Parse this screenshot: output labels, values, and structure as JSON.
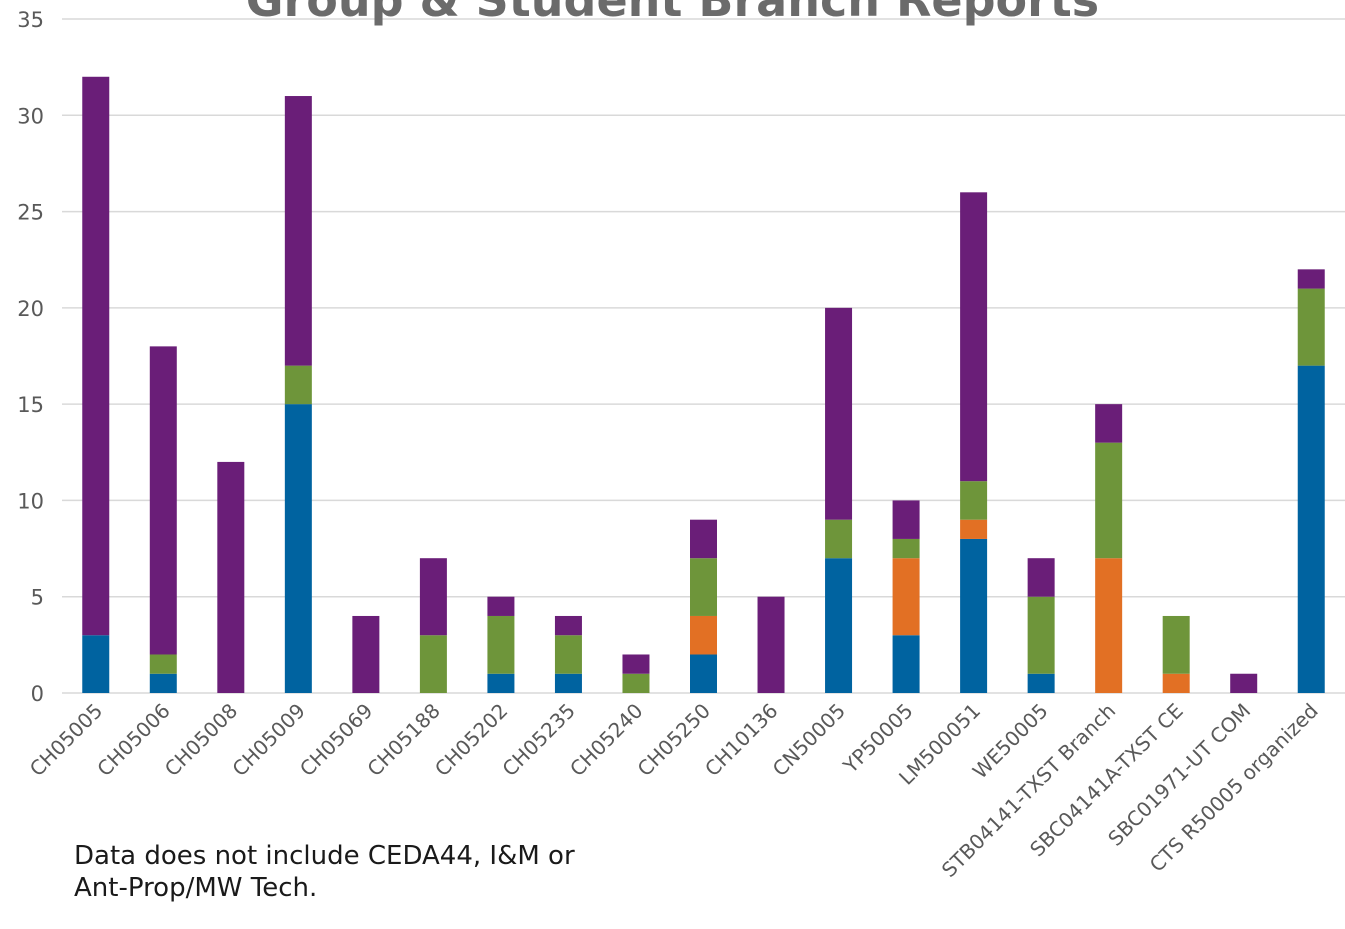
{
  "chart_data": {
    "type": "bar",
    "stacked": true,
    "title": "Group & Student Branch Reports",
    "categories": [
      "CH05005",
      "CH05006",
      "CH05008",
      "CH05009",
      "CH05069",
      "CH05188",
      "CH05202",
      "CH05235",
      "CH05240",
      "CH05250",
      "CH10136",
      "CN50005",
      "YP50005",
      "LM500051",
      "WE50005",
      "STB04141-TXST Branch",
      "SBC04141A-TXST CE",
      "SBC01971-UT COM",
      "CTS R50005 organized"
    ],
    "series": [
      {
        "color": "#0063a0",
        "values": [
          3,
          1,
          0,
          15,
          0,
          0,
          1,
          1,
          0,
          2,
          0,
          7,
          3,
          8,
          1,
          0,
          0,
          0,
          17
        ]
      },
      {
        "color": "#e27024",
        "values": [
          0,
          0,
          0,
          0,
          0,
          0,
          0,
          0,
          0,
          2,
          0,
          0,
          4,
          1,
          0,
          7,
          1,
          0,
          0
        ]
      },
      {
        "color": "#6e953a",
        "values": [
          0,
          1,
          0,
          2,
          0,
          3,
          3,
          2,
          1,
          3,
          0,
          2,
          1,
          2,
          4,
          6,
          3,
          0,
          4
        ]
      },
      {
        "color": "#6a1e78",
        "values": [
          29,
          16,
          12,
          14,
          4,
          4,
          1,
          1,
          1,
          2,
          5,
          11,
          2,
          15,
          2,
          2,
          0,
          1,
          1
        ]
      }
    ],
    "ylim": [
      0,
      35
    ],
    "yticks": [
      "0",
      "5",
      "10",
      "15",
      "20",
      "25",
      "30",
      "35"
    ],
    "grid": true,
    "legend": "none"
  },
  "note": {
    "line1": "Data does not include CEDA44, I&M or",
    "line2": "Ant-Prop/MW Tech."
  }
}
